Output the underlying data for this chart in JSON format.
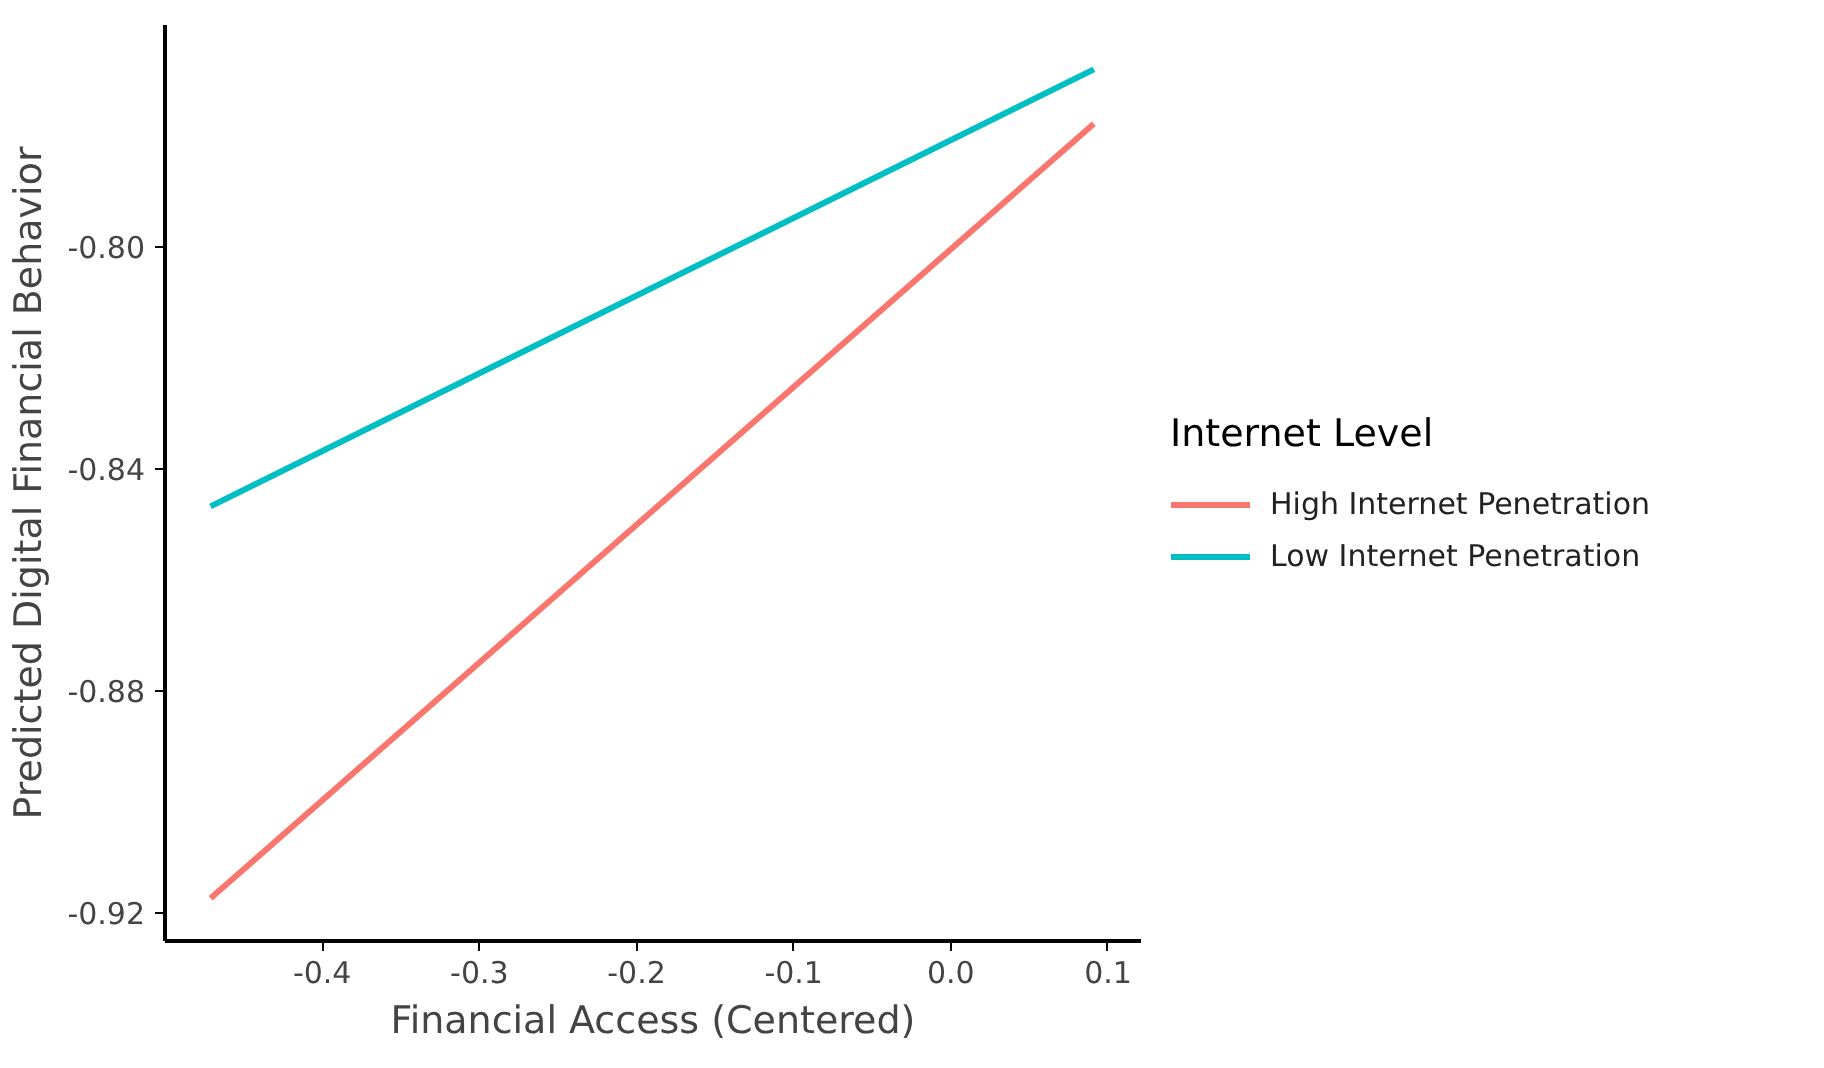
{
  "chart_data": {
    "type": "line",
    "xlabel": "Financial Access (Centered)",
    "ylabel": "Predicted Digital Financial Behavior",
    "legend_title": "Internet Level",
    "x": [
      -0.471,
      0.091
    ],
    "series": [
      {
        "name": "High Internet Penetration",
        "color": "#f8766d",
        "values": [
          -0.9173,
          -0.7778
        ]
      },
      {
        "name": "Low Internet Penetration",
        "color": "#00bfc4",
        "values": [
          -0.8467,
          -0.768
        ]
      }
    ],
    "xlim": [
      -0.5,
      0.121
    ],
    "ylim": [
      -0.925,
      -0.76
    ],
    "xticks": [
      -0.4,
      -0.3,
      -0.2,
      -0.1,
      {
        "value": 0,
        "label": "0.0"
      },
      0.1
    ],
    "yticks": [
      -0.92,
      -0.88,
      -0.84,
      {
        "value": -0.8,
        "label": "-0.80"
      }
    ],
    "grid": false,
    "legend": "right",
    "line_style": "solid"
  }
}
